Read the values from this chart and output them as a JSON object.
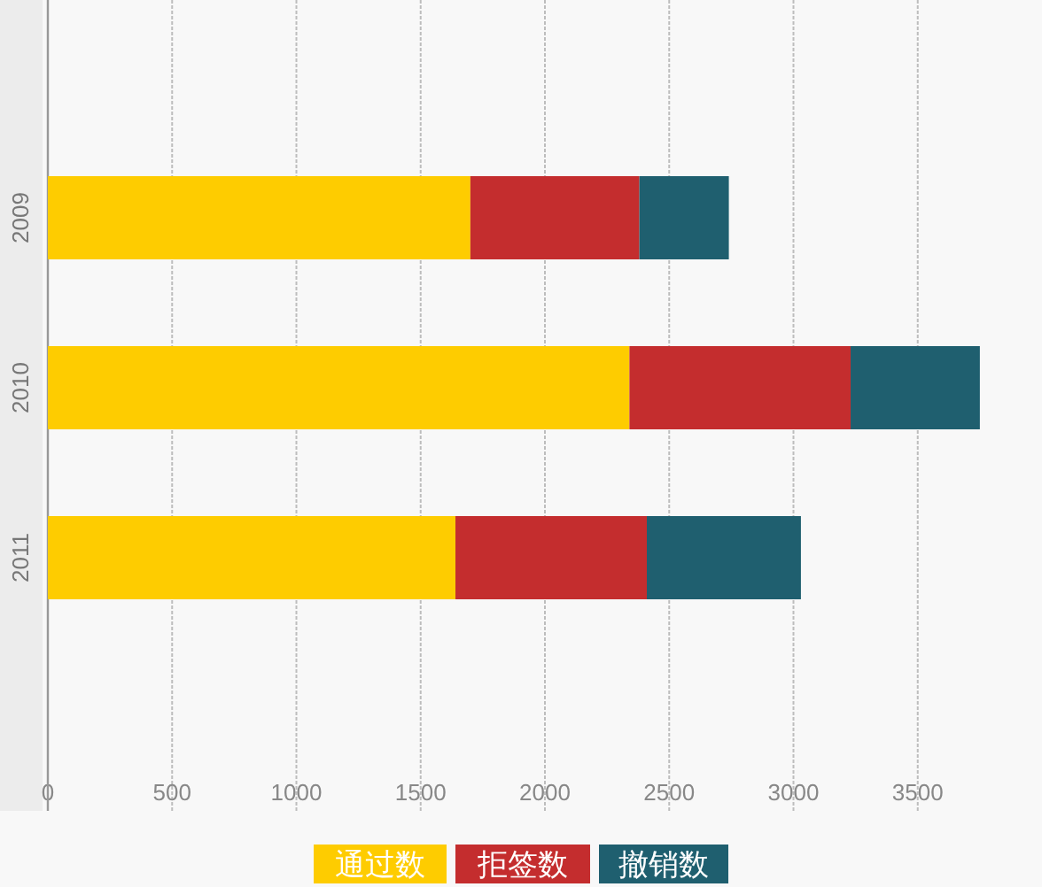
{
  "chart_data": {
    "type": "bar",
    "orientation": "horizontal",
    "stacked": true,
    "categories": [
      "2009",
      "2010",
      "2011"
    ],
    "series": [
      {
        "name": "通过数",
        "color": "#fecc00",
        "values": [
          1700,
          2340,
          1640
        ]
      },
      {
        "name": "拒签数",
        "color": "#c42d2e",
        "values": [
          680,
          890,
          770
        ]
      },
      {
        "name": "撤销数",
        "color": "#1f5f6f",
        "values": [
          360,
          520,
          620
        ]
      }
    ],
    "xlim": [
      0,
      4000
    ],
    "xticks": [
      0,
      500,
      1000,
      1500,
      2000,
      2500,
      3000,
      3500
    ],
    "grid": "x",
    "legend": "bottom"
  }
}
